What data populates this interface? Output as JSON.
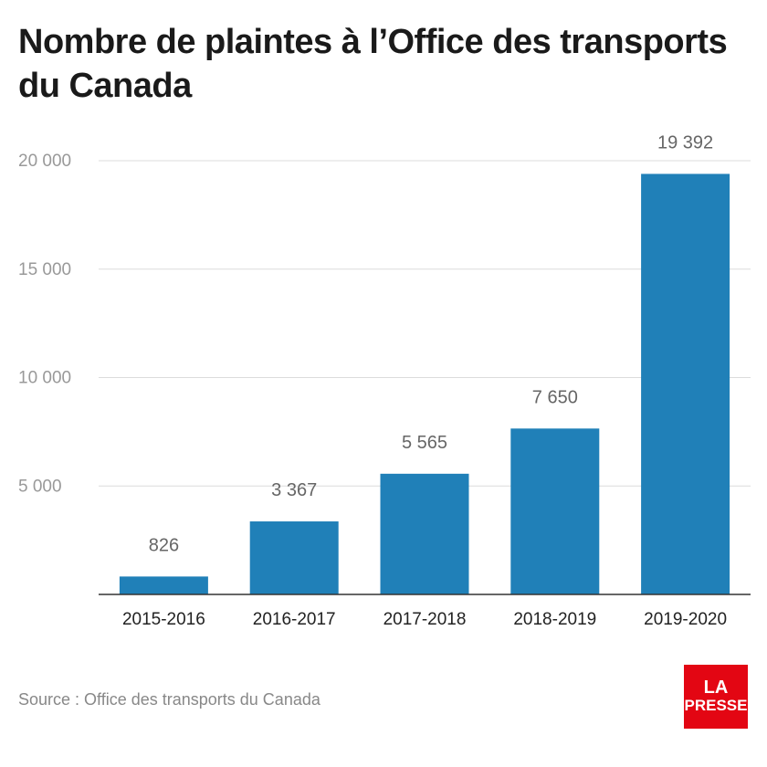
{
  "brand": {
    "logo_line1": "LA",
    "logo_line2": "PRESSE",
    "logo_color": "#e30613"
  },
  "source": "Source : Office des transports du Canada",
  "chart_data": {
    "type": "bar",
    "title": "Nombre de plaintes à l’Office des transports du Canada",
    "xlabel": "",
    "ylabel": "",
    "categories": [
      "2015-2016",
      "2016-2017",
      "2017-2018",
      "2018-2019",
      "2019-2020"
    ],
    "values": [
      826,
      3367,
      5565,
      7650,
      19392
    ],
    "value_labels": [
      "826",
      "3 367",
      "5 565",
      "7 650",
      "19 392"
    ],
    "yticks": [
      {
        "value": 5000,
        "label": "5 000"
      },
      {
        "value": 10000,
        "label": "10 000"
      },
      {
        "value": 15000,
        "label": "15 000"
      },
      {
        "value": 20000,
        "label": "20 000"
      }
    ],
    "ylim": [
      0,
      20000
    ],
    "grid": true,
    "legend": "none",
    "bar_color": "#2080b8"
  }
}
